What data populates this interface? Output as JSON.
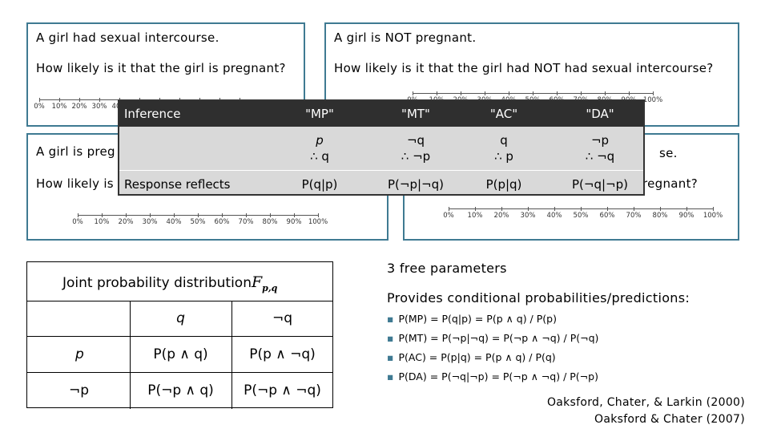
{
  "panels": [
    {
      "line1": "A girl had sexual intercourse.",
      "line2": "How likely is it that the girl is pregnant?"
    },
    {
      "line1": "A girl is NOT pregnant.",
      "line2": "How likely is it that the girl had NOT had sexual intercourse?"
    },
    {
      "line1": "A girl is preg",
      "line2": "How likely is"
    },
    {
      "line1": "se.",
      "line2": "regnant?"
    }
  ],
  "scale_ticks": [
    "0%",
    "10%",
    "20%",
    "30%",
    "40%",
    "50%",
    "60%",
    "70%",
    "80%",
    "90%",
    "100%"
  ],
  "inference_table": {
    "row_label_1": "Inference",
    "row_label_2": "Response reflects",
    "columns": [
      {
        "name": "\"MP\"",
        "premise": "p",
        "conclusion": "∴ q",
        "response": "P(q|p)"
      },
      {
        "name": "\"MT\"",
        "premise": "¬q",
        "conclusion": "∴ ¬p",
        "response": "P(¬p|¬q)"
      },
      {
        "name": "\"AC\"",
        "premise": "q",
        "conclusion": "∴ p",
        "response": "P(p|q)"
      },
      {
        "name": "\"DA\"",
        "premise": "¬p",
        "conclusion": "∴ ¬q",
        "response": "P(¬q|¬p)"
      }
    ]
  },
  "joint_table": {
    "title": "Joint probability distribution",
    "symbol": "F",
    "symbol_sub": "p,q",
    "col_q": "q",
    "col_not_q": "¬q",
    "row_p": "p",
    "row_not_p": "¬p",
    "p_q": "P(p ∧ q)",
    "p_not_q": "P(p ∧ ¬q)",
    "not_p_q": "P(¬p ∧ q)",
    "not_p_not_q": "P(¬p ∧ ¬q)"
  },
  "free_params": "3 free parameters",
  "provides": "Provides conditional probabilities/predictions:",
  "bullets": [
    "P(MP) = P(q|p) = P(p ∧ q) / P(p)",
    "P(MT) = P(¬p|¬q) = P(¬p ∧ ¬q) / P(¬q)",
    "P(AC) = P(p|q) = P(p ∧ q) / P(q)",
    "P(DA) = P(¬q|¬p) = P(¬p ∧ ¬q) / P(¬p)"
  ],
  "citations": [
    "Oaksford, Chater, & Larkin (2000)",
    "Oaksford & Chater (2007)"
  ],
  "colors": {
    "accent": "#3f7a92",
    "table_header": "#2f2f2f",
    "table_body": "#d9d9d9"
  }
}
